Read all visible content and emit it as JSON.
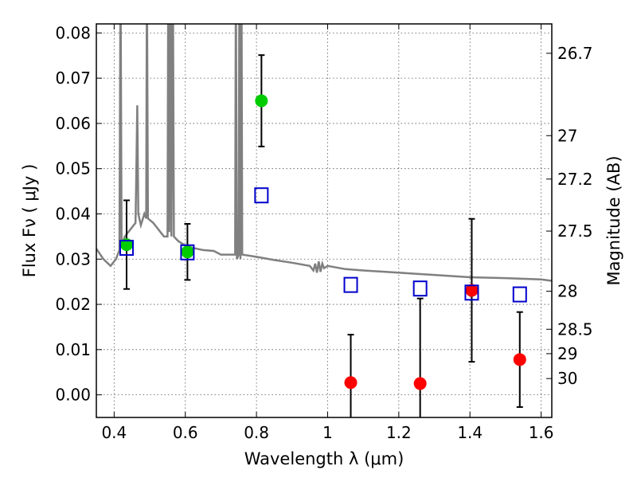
{
  "chart_data": {
    "type": "scatter",
    "xlabel": "Wavelength  λ (μm)",
    "ylabel": "Flux  Fν  ( μJy )",
    "y2label": "Magnitude (AB)",
    "xlim": [
      0.35,
      1.63
    ],
    "ylim": [
      -0.005,
      0.082
    ],
    "x_ticks": [
      0.4,
      0.6,
      0.8,
      1.0,
      1.2,
      1.4,
      1.6
    ],
    "x_tick_labels": [
      "0.4",
      "0.6",
      "0.8",
      "1",
      "1.2",
      "1.4",
      "1.6"
    ],
    "y_ticks": [
      0.0,
      0.01,
      0.02,
      0.03,
      0.04,
      0.05,
      0.06,
      0.07,
      0.08
    ],
    "y_tick_labels": [
      "0.00",
      "0.01",
      "0.02",
      "0.03",
      "0.04",
      "0.05",
      "0.06",
      "0.07",
      "0.08"
    ],
    "magnitude_ticks": [
      {
        "label": "26.7",
        "flux": 0.0755
      },
      {
        "label": "27",
        "flux": 0.0573
      },
      {
        "label": "27.2",
        "flux": 0.0477
      },
      {
        "label": "27.5",
        "flux": 0.0362
      },
      {
        "label": "28",
        "flux": 0.0229
      },
      {
        "label": "28.5",
        "flux": 0.0145
      },
      {
        "label": "29",
        "flux": 0.0091
      },
      {
        "label": "30",
        "flux": 0.0036
      }
    ],
    "grid": true,
    "series": [
      {
        "marker": "circle",
        "color": "#00cc00",
        "points": [
          {
            "x": 0.435,
            "y": 0.0332,
            "err": 0.0098
          },
          {
            "x": 0.606,
            "y": 0.0316,
            "err": 0.0062
          },
          {
            "x": 0.814,
            "y": 0.065,
            "err": 0.0101
          }
        ]
      },
      {
        "marker": "circle",
        "color": "#ff0000",
        "points": [
          {
            "x": 1.065,
            "y": 0.0027,
            "err": 0.0106
          },
          {
            "x": 1.26,
            "y": 0.0025,
            "err": 0.0188
          },
          {
            "x": 1.405,
            "y": 0.0231,
            "err": 0.0158
          },
          {
            "x": 1.54,
            "y": 0.0078,
            "err": 0.0105
          }
        ]
      },
      {
        "marker": "open-square",
        "color": "#0000cc",
        "points": [
          {
            "x": 0.435,
            "y": 0.0325
          },
          {
            "x": 0.606,
            "y": 0.0315
          },
          {
            "x": 0.814,
            "y": 0.0441
          },
          {
            "x": 1.065,
            "y": 0.0243
          },
          {
            "x": 1.26,
            "y": 0.0235
          },
          {
            "x": 1.405,
            "y": 0.0226
          },
          {
            "x": 1.54,
            "y": 0.0222
          }
        ]
      }
    ],
    "spectrum": {
      "color": "#808080",
      "points": [
        [
          0.35,
          0.0323
        ],
        [
          0.37,
          0.03
        ],
        [
          0.39,
          0.0285
        ],
        [
          0.405,
          0.03
        ],
        [
          0.415,
          0.032
        ],
        [
          0.418,
          0.095
        ],
        [
          0.421,
          0.033
        ],
        [
          0.43,
          0.035
        ],
        [
          0.44,
          0.036
        ],
        [
          0.45,
          0.037
        ],
        [
          0.46,
          0.038
        ],
        [
          0.462,
          0.048
        ],
        [
          0.465,
          0.064
        ],
        [
          0.468,
          0.04
        ],
        [
          0.475,
          0.0375
        ],
        [
          0.485,
          0.04
        ],
        [
          0.49,
          0.039
        ],
        [
          0.492,
          0.095
        ],
        [
          0.495,
          0.039
        ],
        [
          0.51,
          0.038
        ],
        [
          0.52,
          0.037
        ],
        [
          0.53,
          0.036
        ],
        [
          0.54,
          0.035
        ],
        [
          0.55,
          0.035
        ],
        [
          0.552,
          0.095
        ],
        [
          0.555,
          0.036
        ],
        [
          0.558,
          0.095
        ],
        [
          0.561,
          0.035
        ],
        [
          0.565,
          0.095
        ],
        [
          0.568,
          0.035
        ],
        [
          0.58,
          0.034
        ],
        [
          0.6,
          0.033
        ],
        [
          0.62,
          0.0325
        ],
        [
          0.65,
          0.032
        ],
        [
          0.68,
          0.0318
        ],
        [
          0.7,
          0.031
        ],
        [
          0.73,
          0.031
        ],
        [
          0.74,
          0.031
        ],
        [
          0.742,
          0.095
        ],
        [
          0.745,
          0.03
        ],
        [
          0.75,
          0.031
        ],
        [
          0.752,
          0.095
        ],
        [
          0.755,
          0.03
        ],
        [
          0.758,
          0.095
        ],
        [
          0.76,
          0.031
        ],
        [
          0.8,
          0.0305
        ],
        [
          0.85,
          0.0298
        ],
        [
          0.9,
          0.0292
        ],
        [
          0.95,
          0.0285
        ],
        [
          0.96,
          0.0275
        ],
        [
          0.965,
          0.029
        ],
        [
          0.97,
          0.027
        ],
        [
          0.975,
          0.0295
        ],
        [
          0.98,
          0.0272
        ],
        [
          0.985,
          0.029
        ],
        [
          0.99,
          0.028
        ],
        [
          1.0,
          0.0285
        ],
        [
          1.05,
          0.0278
        ],
        [
          1.1,
          0.0275
        ],
        [
          1.2,
          0.027
        ],
        [
          1.3,
          0.0265
        ],
        [
          1.4,
          0.026
        ],
        [
          1.5,
          0.0258
        ],
        [
          1.6,
          0.0255
        ],
        [
          1.63,
          0.0252
        ]
      ]
    }
  }
}
